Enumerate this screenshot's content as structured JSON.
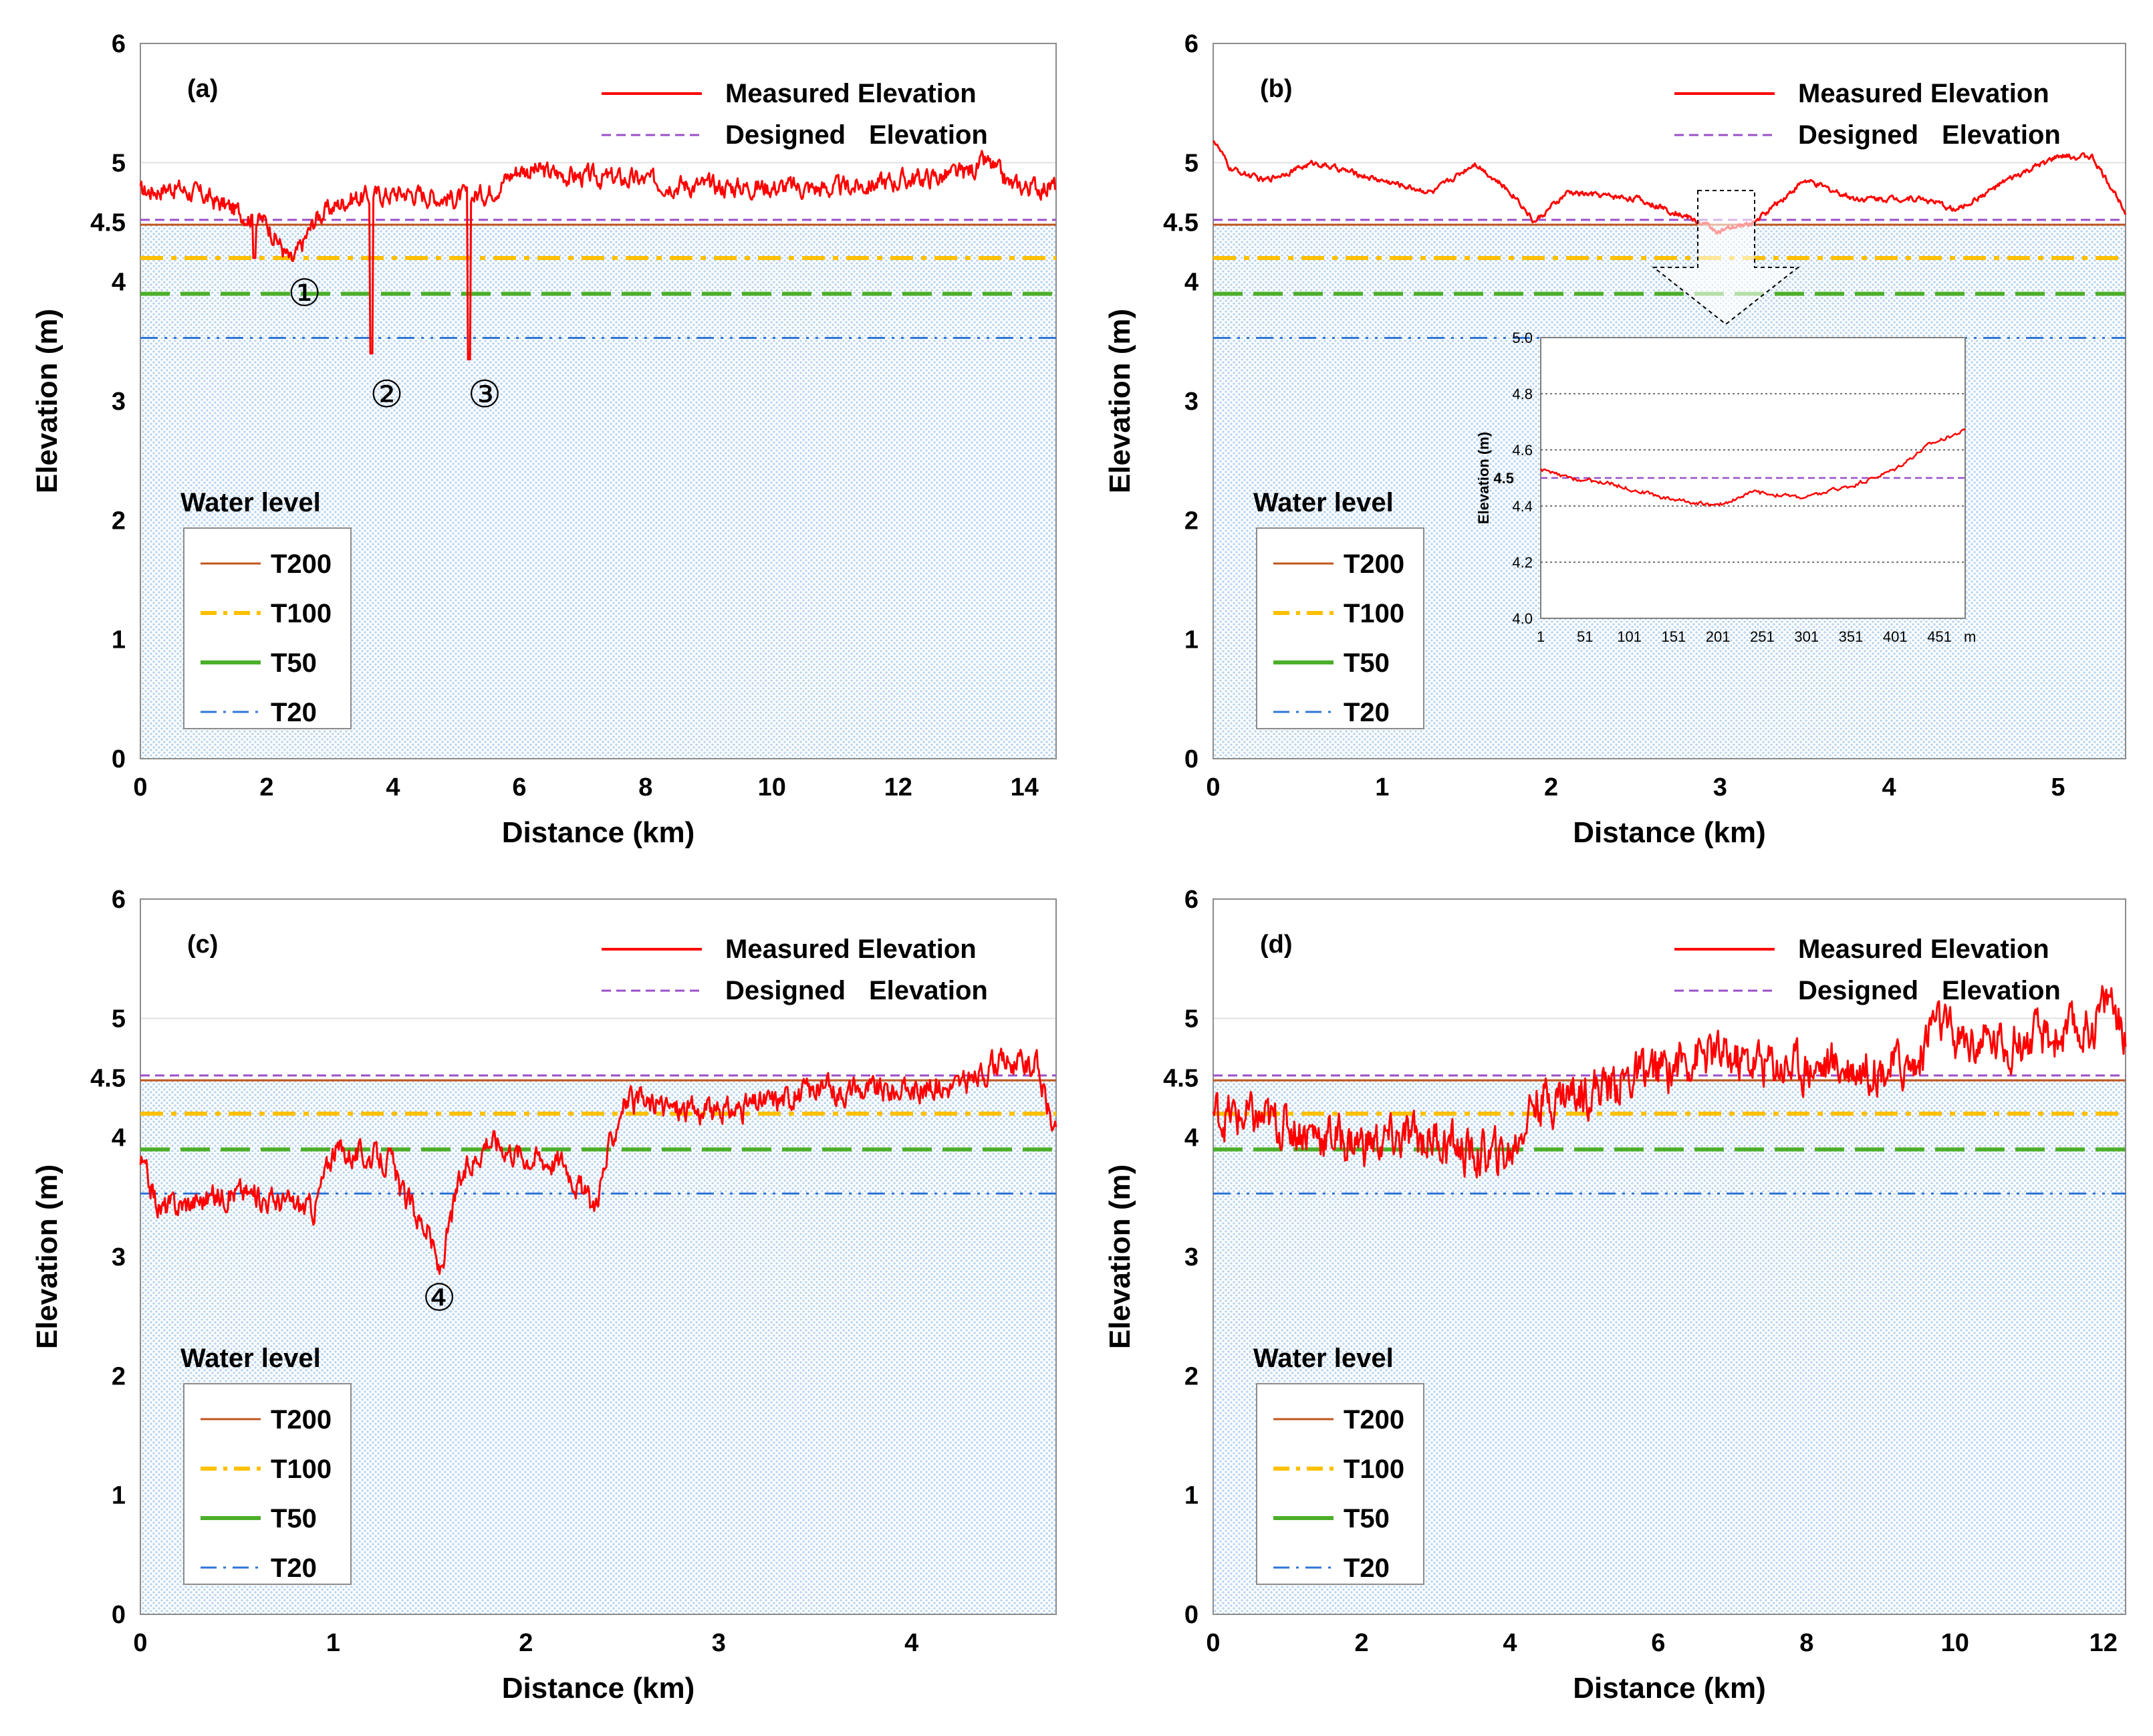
{
  "chart_data": [
    {
      "panel": "(a)",
      "type": "line",
      "xlabel": "Distance (km)",
      "ylabel": "Elevation (m)",
      "xlim": [
        0,
        14.5
      ],
      "ylim": [
        0,
        6
      ],
      "x_ticks": [
        "0",
        "2",
        "4",
        "6",
        "8",
        "10",
        "12",
        "14"
      ],
      "y_ticks": [
        "0",
        "1",
        "2",
        "3",
        "4",
        "4.5",
        "5",
        "6"
      ],
      "water_levels": {
        "T200": 4.48,
        "T100": 4.2,
        "T50": 3.9,
        "T20": 3.53
      },
      "designed_elevation": 4.52,
      "measured_knots": [
        [
          0,
          4.75
        ],
        [
          0.5,
          4.8
        ],
        [
          1,
          4.72
        ],
        [
          1.5,
          4.6
        ],
        [
          2,
          4.5
        ],
        [
          2.4,
          4.15
        ],
        [
          2.8,
          4.55
        ],
        [
          3.3,
          4.7
        ],
        [
          4.2,
          4.75
        ],
        [
          5,
          4.7
        ],
        [
          5.5,
          4.75
        ],
        [
          6,
          4.95
        ],
        [
          7,
          4.88
        ],
        [
          8,
          4.85
        ],
        [
          9,
          4.8
        ],
        [
          10,
          4.8
        ],
        [
          11,
          4.78
        ],
        [
          12,
          4.85
        ],
        [
          13,
          4.9
        ],
        [
          13.4,
          5.0
        ],
        [
          13.8,
          4.8
        ],
        [
          14.5,
          4.8
        ]
      ],
      "noise": 0.07,
      "spikes": [
        [
          1.8,
          4.2
        ],
        [
          3.65,
          3.4
        ],
        [
          5.2,
          3.35
        ]
      ],
      "annotations": [
        {
          "text": "①",
          "x": 2.6,
          "y": 3.8
        },
        {
          "text": "②",
          "x": 3.9,
          "y": 2.95
        },
        {
          "text": "③",
          "x": 5.45,
          "y": 2.95
        }
      ]
    },
    {
      "panel": "(b)",
      "type": "line",
      "xlabel": "Distance (km)",
      "ylabel": "Elevation (m)",
      "xlim": [
        0,
        5.4
      ],
      "ylim": [
        0,
        6
      ],
      "x_ticks": [
        "0",
        "1",
        "2",
        "3",
        "4",
        "5"
      ],
      "y_ticks": [
        "0",
        "1",
        "2",
        "3",
        "4",
        "4.5",
        "5",
        "6"
      ],
      "water_levels": {
        "T200": 4.48,
        "T100": 4.2,
        "T50": 3.9,
        "T20": 3.53
      },
      "designed_elevation": 4.52,
      "measured_knots": [
        [
          0,
          5.2
        ],
        [
          0.1,
          4.95
        ],
        [
          0.3,
          4.85
        ],
        [
          0.6,
          5.0
        ],
        [
          1,
          4.85
        ],
        [
          1.3,
          4.75
        ],
        [
          1.55,
          5.0
        ],
        [
          1.8,
          4.7
        ],
        [
          1.9,
          4.5
        ],
        [
          2.1,
          4.75
        ],
        [
          2.5,
          4.7
        ],
        [
          2.8,
          4.55
        ],
        [
          3.0,
          4.42
        ],
        [
          3.2,
          4.5
        ],
        [
          3.5,
          4.85
        ],
        [
          3.8,
          4.7
        ],
        [
          4.2,
          4.7
        ],
        [
          4.4,
          4.6
        ],
        [
          4.7,
          4.85
        ],
        [
          5.0,
          5.05
        ],
        [
          5.2,
          5.05
        ],
        [
          5.4,
          4.6
        ]
      ],
      "noise": 0.02,
      "spikes": [],
      "inset": {
        "ylabel": "Elevation (m)",
        "ylim": [
          4.0,
          5.0
        ],
        "y_ticks": [
          "4.0",
          "4.2",
          "4.4",
          "4.6",
          "4.8",
          "5.0"
        ],
        "x_ticks": [
          "1",
          "51",
          "101",
          "151",
          "201",
          "251",
          "301",
          "351",
          "401",
          "451"
        ],
        "x_unit": "m",
        "xlim": [
          1,
          480
        ],
        "designed": 4.5,
        "designed_label": "4.5",
        "measured_knots": [
          [
            1,
            4.53
          ],
          [
            30,
            4.5
          ],
          [
            80,
            4.48
          ],
          [
            140,
            4.43
          ],
          [
            200,
            4.4
          ],
          [
            240,
            4.45
          ],
          [
            300,
            4.43
          ],
          [
            360,
            4.48
          ],
          [
            400,
            4.53
          ],
          [
            440,
            4.62
          ],
          [
            480,
            4.67
          ]
        ]
      }
    },
    {
      "panel": "(c)",
      "type": "line",
      "xlabel": "Distance (km)",
      "ylabel": "Elevation (m)",
      "xlim": [
        0,
        4.75
      ],
      "ylim": [
        0,
        6
      ],
      "x_ticks": [
        "0",
        "1",
        "2",
        "3",
        "4"
      ],
      "y_ticks": [
        "0",
        "1",
        "2",
        "3",
        "4",
        "4.5",
        "5",
        "6"
      ],
      "water_levels": {
        "T200": 4.48,
        "T100": 4.2,
        "T50": 3.9,
        "T20": 3.53
      },
      "designed_elevation": 4.52,
      "measured_knots": [
        [
          0,
          3.8
        ],
        [
          0.1,
          3.4
        ],
        [
          0.5,
          3.55
        ],
        [
          0.9,
          3.4
        ],
        [
          1.0,
          3.9
        ],
        [
          1.3,
          3.8
        ],
        [
          1.35,
          3.55
        ],
        [
          1.5,
          3.2
        ],
        [
          1.55,
          2.85
        ],
        [
          1.65,
          3.6
        ],
        [
          1.8,
          4.0
        ],
        [
          2.0,
          3.85
        ],
        [
          2.2,
          3.8
        ],
        [
          2.35,
          3.4
        ],
        [
          2.5,
          4.3
        ],
        [
          3.0,
          4.2
        ],
        [
          3.5,
          4.4
        ],
        [
          4.0,
          4.4
        ],
        [
          4.3,
          4.45
        ],
        [
          4.45,
          4.65
        ],
        [
          4.65,
          4.6
        ],
        [
          4.75,
          4.0
        ]
      ],
      "noise": 0.09,
      "spikes": [],
      "annotations": [
        {
          "text": "④",
          "x": 1.55,
          "y": 2.55
        }
      ]
    },
    {
      "panel": "(d)",
      "type": "line",
      "xlabel": "Distance (km)",
      "ylabel": "Elevation (m)",
      "xlim": [
        0,
        12.3
      ],
      "ylim": [
        0,
        6
      ],
      "x_ticks": [
        "0",
        "2",
        "4",
        "6",
        "8",
        "10",
        "12"
      ],
      "y_ticks": [
        "0",
        "1",
        "2",
        "3",
        "4",
        "4.5",
        "5",
        "6"
      ],
      "water_levels": {
        "T200": 4.48,
        "T100": 4.2,
        "T50": 3.9,
        "T20": 3.53
      },
      "designed_elevation": 4.52,
      "measured_knots": [
        [
          0,
          4.2
        ],
        [
          1,
          4.1
        ],
        [
          2,
          3.95
        ],
        [
          3,
          4.0
        ],
        [
          3.5,
          3.85
        ],
        [
          4,
          3.85
        ],
        [
          4.3,
          4.3
        ],
        [
          5,
          4.4
        ],
        [
          6,
          4.55
        ],
        [
          6.5,
          4.7
        ],
        [
          7,
          4.65
        ],
        [
          8,
          4.6
        ],
        [
          9,
          4.6
        ],
        [
          9.5,
          4.6
        ],
        [
          9.7,
          5.0
        ],
        [
          10,
          4.8
        ],
        [
          11,
          4.8
        ],
        [
          11.8,
          4.9
        ],
        [
          12.1,
          5.2
        ],
        [
          12.3,
          4.8
        ]
      ],
      "noise": 0.16,
      "spikes": [],
      "annotations": []
    }
  ],
  "legend": {
    "measured": "Measured Elevation",
    "designed_word1": "Designed",
    "designed_word2": "Elevation",
    "water_title": "Water level",
    "t200": "T200",
    "t100": "T100",
    "t50": "T50",
    "t20": "T20"
  },
  "colors": {
    "measured": "#ff0000",
    "designed": "#9b4fc9",
    "t200": "#c0551f",
    "t100": "#ffc000",
    "t50": "#4caf2a",
    "t20": "#2e75d6",
    "water_fill": "#dbeaf8"
  }
}
